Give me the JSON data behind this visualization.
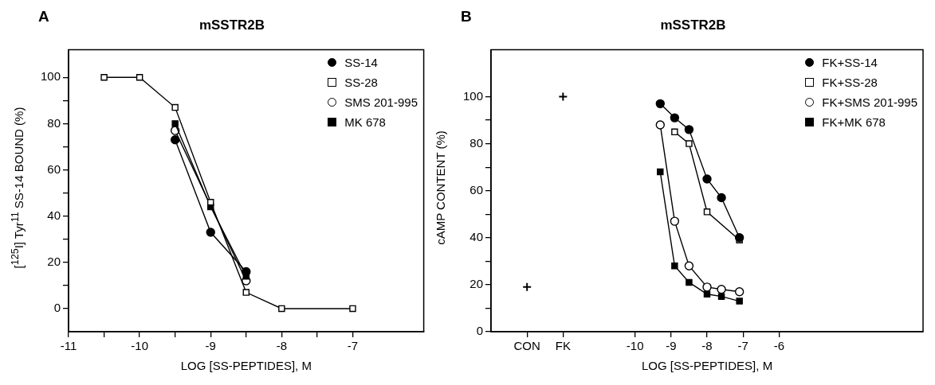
{
  "chart_data": [
    {
      "type": "line",
      "title": "mSSTR2B",
      "xlabel": "LOG [SS-PEPTIDES], M",
      "ylabel": "[$^{125}$I] Tyr$^{11}$ SS-14 BOUND (%)",
      "annotations": [
        "A"
      ],
      "legend": "top right",
      "grid": false,
      "xlim": [
        -11,
        -6
      ],
      "ylim": [
        -10,
        112
      ],
      "xticks": [
        -11,
        {
          "value": -10.5,
          "label": null
        },
        -10,
        {
          "value": -9.5,
          "label": null
        },
        -9,
        {
          "value": -8.5,
          "label": null
        },
        -8,
        {
          "value": -7.5,
          "label": null
        },
        -7
      ],
      "yticks": [
        0,
        {
          "value": 10,
          "label": null
        },
        20,
        {
          "value": 30,
          "label": null
        },
        40,
        {
          "value": 50,
          "label": null
        },
        60,
        {
          "value": 70,
          "label": null
        },
        80,
        {
          "value": 90,
          "label": null
        },
        100
      ],
      "series": [
        {
          "name": "SS-14",
          "color": "#000000",
          "marker": "circle",
          "x": [
            -9.5,
            -9,
            -8.5
          ],
          "values": [
            73,
            33,
            16
          ]
        },
        {
          "name": "SS-28",
          "color": "#ffffff",
          "marker": "square",
          "x": [
            -10.5,
            -10,
            -9.5,
            -9,
            -8.5,
            -8,
            -7
          ],
          "values": [
            100,
            100,
            87,
            46,
            7,
            0,
            0
          ]
        },
        {
          "name": "SMS 201-995",
          "color": "#ffffff",
          "marker": "circle",
          "x": [
            -9.5,
            -8.5
          ],
          "values": [
            77,
            12
          ]
        },
        {
          "name": "MK 678",
          "color": "#000000",
          "marker": "square",
          "x": [
            -9.5,
            -9,
            -8.5
          ],
          "values": [
            80,
            44,
            14
          ]
        }
      ]
    },
    {
      "type": "line",
      "title": "mSSTR2B",
      "xlabel": "LOG [SS-PEPTIDES], M",
      "ylabel": "cAMP CONTENT (%)",
      "annotations": [
        "B"
      ],
      "legend": "top right",
      "grid": false,
      "xlim": [
        -14,
        -2
      ],
      "ylim": [
        0,
        120
      ],
      "xticks": [
        {
          "value": -13,
          "label": "CON"
        },
        {
          "value": -12,
          "label": "FK"
        },
        -10,
        -9,
        -8,
        -7,
        -6
      ],
      "yticks": [
        0,
        {
          "value": 10,
          "label": null
        },
        20,
        {
          "value": 30,
          "label": null
        },
        40,
        {
          "value": 50,
          "label": null
        },
        60,
        {
          "value": 70,
          "label": null
        },
        80,
        {
          "value": 90,
          "label": null
        },
        100
      ],
      "x": [
        -9.3,
        -8.9,
        -8.5,
        -8,
        -7.6,
        -7.1
      ],
      "series": [
        {
          "type": "scatter",
          "color": "#000000",
          "marker": "cross",
          "x": [
            -13,
            -12
          ],
          "values": [
            19,
            100
          ]
        },
        {
          "name": "FK+SS-14",
          "color": "#000000",
          "marker": "circle",
          "values": [
            97,
            91,
            86,
            65,
            57,
            40
          ]
        },
        {
          "name": "FK+SS-28",
          "color": "#ffffff",
          "marker": "square",
          "values": [
            null,
            85,
            80,
            51,
            null,
            39
          ]
        },
        {
          "name": "FK+SMS 201-995",
          "color": "#ffffff",
          "marker": "circle",
          "values": [
            88,
            47,
            28,
            19,
            18,
            17
          ]
        },
        {
          "name": "FK+MK 678",
          "color": "#000000",
          "marker": "square",
          "values": [
            68,
            28,
            21,
            16,
            15,
            13
          ]
        }
      ]
    }
  ]
}
